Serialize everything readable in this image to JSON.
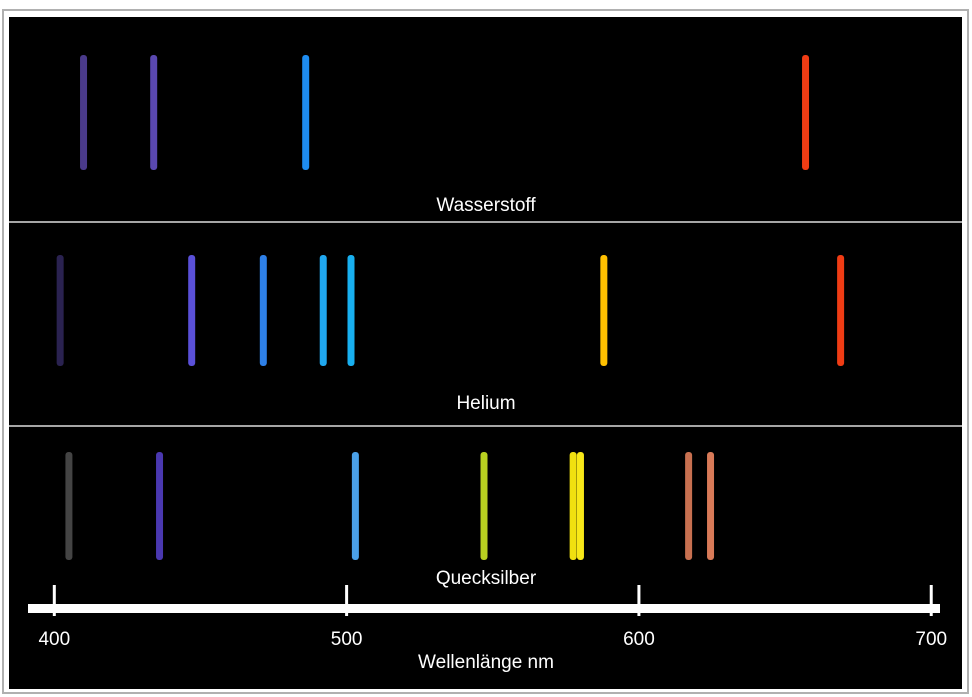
{
  "chart_data": {
    "type": "spectrum",
    "xlabel": "Wellenlänge nm",
    "xlim": [
      391,
      703
    ],
    "xticks": [
      400,
      500,
      600,
      700
    ],
    "series": [
      {
        "name": "Wasserstoff",
        "x": [
          410,
          434,
          486,
          657
        ],
        "colors": [
          "#4a3a8a",
          "#5a48b0",
          "#1e8cf0",
          "#f03c14"
        ]
      },
      {
        "name": "Helium",
        "x": [
          402,
          447,
          471.5,
          492,
          501.5,
          588,
          669
        ],
        "colors": [
          "#2a2250",
          "#5a50d8",
          "#2e80e8",
          "#20a8f0",
          "#18b0f0",
          "#ffc000",
          "#f03c14"
        ]
      },
      {
        "name": "Quecksilber",
        "x": [
          405,
          436,
          503,
          547,
          577.5,
          580,
          617,
          624.5
        ],
        "colors": [
          "#444444",
          "#4a38b0",
          "#4aa0e8",
          "#b8d020",
          "#f0e010",
          "#f8e818",
          "#c87050",
          "#d87a58"
        ]
      }
    ]
  }
}
